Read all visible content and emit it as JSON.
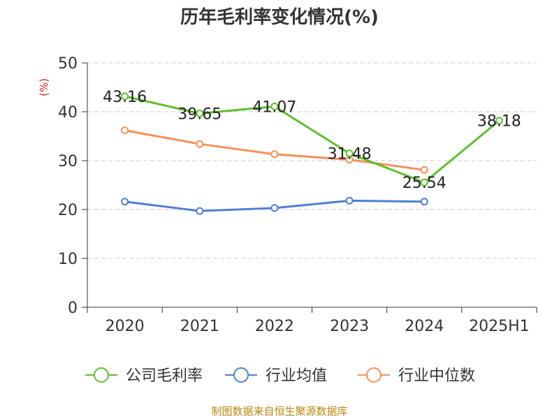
{
  "chart_data": {
    "type": "line",
    "title": "历年毛利率变化情况(%)",
    "ylabel": "(%)",
    "categories": [
      "2020",
      "2021",
      "2022",
      "2023",
      "2024",
      "2025H1"
    ],
    "ylim": [
      0,
      50
    ],
    "yticks": [
      0,
      10,
      20,
      30,
      40,
      50
    ],
    "grid": true,
    "legend_position": "bottom",
    "series": [
      {
        "name": "公司毛利率",
        "color": "#5fbf2f",
        "values": [
          43.16,
          39.65,
          41.07,
          31.48,
          25.54,
          38.18
        ],
        "labels": [
          "43.16",
          "39.65",
          "41.07",
          "31.48",
          "25.54",
          "38.18"
        ]
      },
      {
        "name": "行业均值",
        "color": "#4f7fd4",
        "values": [
          21.6,
          19.7,
          20.3,
          21.8,
          21.6,
          null
        ]
      },
      {
        "name": "行业中位数",
        "color": "#f5905a",
        "values": [
          36.2,
          33.4,
          31.3,
          30.2,
          28.1,
          null
        ]
      }
    ]
  },
  "footer": {
    "source": "制图数据来自恒生聚源数据库"
  }
}
